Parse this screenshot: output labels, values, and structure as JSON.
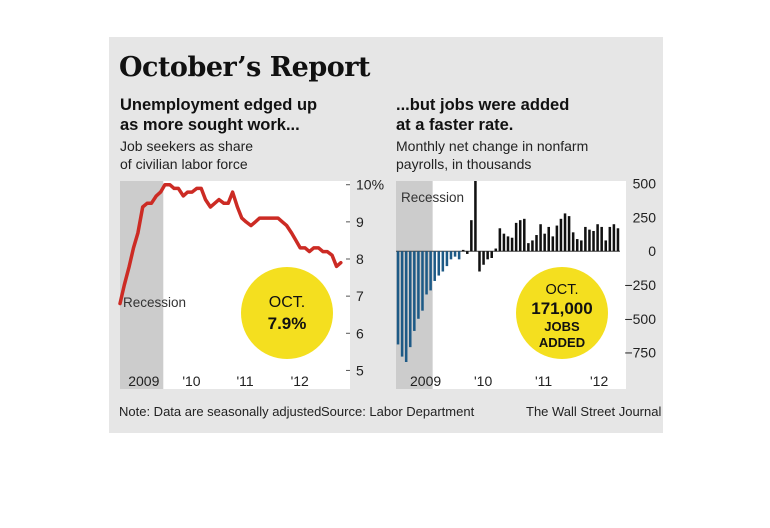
{
  "title": "October’s Report",
  "left": {
    "headline": [
      "Unemployment edged up",
      "as more sought work..."
    ],
    "subtitle": [
      "Job seekers as share",
      "of civilian labor force"
    ],
    "recession_label": "Recession",
    "callout": [
      "OCT.",
      "7.9%"
    ]
  },
  "right": {
    "headline": [
      "...but jobs were added",
      "at a faster rate."
    ],
    "subtitle": [
      "Monthly net change in nonfarm",
      "payrolls, in thousands"
    ],
    "recession_label": "Recession",
    "callout": [
      "OCT.",
      "171,000",
      "JOBS",
      "ADDED"
    ]
  },
  "footer": {
    "note": "Note: Data are seasonally adjusted",
    "source": "Source: Labor Department",
    "credit": "The Wall Street Journal"
  },
  "colors": {
    "line": "#cc2b24",
    "bar_recession": "#1d5a86",
    "bar": "#111111",
    "callout": "#f4df1f",
    "recession_shade": "#cccccc",
    "panel": "#ffffff",
    "background": "#e6e6e6"
  },
  "chart_data": [
    {
      "type": "line",
      "ylabel": "",
      "yticks": [
        "10%",
        "9",
        "8",
        "7",
        "6",
        "5"
      ],
      "ylim": [
        4.5,
        10.1
      ],
      "xticks": [
        {
          "label": "2009",
          "x": 2009.0
        },
        {
          "label": "'10",
          "x": 2010.0
        },
        {
          "label": "'11",
          "x": 2011.0
        },
        {
          "label": "'12",
          "x": 2012.0
        }
      ],
      "xlim": [
        2008.7,
        2012.95
      ],
      "recession": [
        2008.7,
        2009.5
      ],
      "series": [
        {
          "x": [
            2008.7,
            2008.78,
            2008.87,
            2008.95,
            2009.03,
            2009.12,
            2009.2,
            2009.28,
            2009.37,
            2009.45,
            2009.53,
            2009.62,
            2009.7,
            2009.78,
            2009.87,
            2009.95,
            2010.03,
            2010.12,
            2010.2,
            2010.28,
            2010.37,
            2010.45,
            2010.53,
            2010.62,
            2010.7,
            2010.78,
            2010.87,
            2010.95,
            2011.03,
            2011.12,
            2011.2,
            2011.28,
            2011.37,
            2011.45,
            2011.53,
            2011.62,
            2011.7,
            2011.78,
            2011.87,
            2011.95,
            2012.03,
            2012.12,
            2012.2,
            2012.28,
            2012.37,
            2012.45,
            2012.53,
            2012.62,
            2012.7,
            2012.78
          ],
          "y": [
            6.8,
            7.3,
            7.8,
            8.3,
            8.7,
            9.4,
            9.5,
            9.5,
            9.7,
            9.8,
            10.0,
            10.0,
            9.9,
            9.9,
            9.7,
            9.8,
            9.8,
            9.9,
            9.9,
            9.6,
            9.4,
            9.5,
            9.6,
            9.5,
            9.5,
            9.8,
            9.4,
            9.1,
            9.0,
            8.9,
            9.0,
            9.1,
            9.1,
            9.1,
            9.1,
            9.1,
            9.0,
            8.9,
            8.7,
            8.5,
            8.3,
            8.3,
            8.2,
            8.3,
            8.3,
            8.2,
            8.2,
            8.1,
            7.8,
            7.9
          ]
        }
      ],
      "callout_value": "7.9%"
    },
    {
      "type": "bar",
      "yticks": [
        "500",
        "250",
        "0",
        "−250",
        "−500",
        "−750"
      ],
      "ylim": [
        -820,
        520
      ],
      "xticks": [
        {
          "label": "2009",
          "x": 2009.0
        },
        {
          "label": "'10",
          "x": 2010.0
        },
        {
          "label": "'11",
          "x": 2011.0
        },
        {
          "label": "'12",
          "x": 2012.0
        }
      ],
      "recession": [
        2008.7,
        2009.5
      ],
      "recession_months": 9,
      "values": [
        -690,
        -780,
        -820,
        -710,
        -590,
        -500,
        -440,
        -320,
        -290,
        -220,
        -180,
        -150,
        -110,
        -60,
        -40,
        -60,
        10,
        -20,
        230,
        520,
        -150,
        -100,
        -60,
        -50,
        20,
        170,
        130,
        110,
        100,
        210,
        230,
        240,
        60,
        80,
        120,
        200,
        130,
        180,
        110,
        190,
        240,
        280,
        260,
        140,
        90,
        80,
        180,
        160,
        150,
        200,
        180,
        80,
        180,
        200,
        170
      ],
      "callout_value": "171,000"
    }
  ]
}
